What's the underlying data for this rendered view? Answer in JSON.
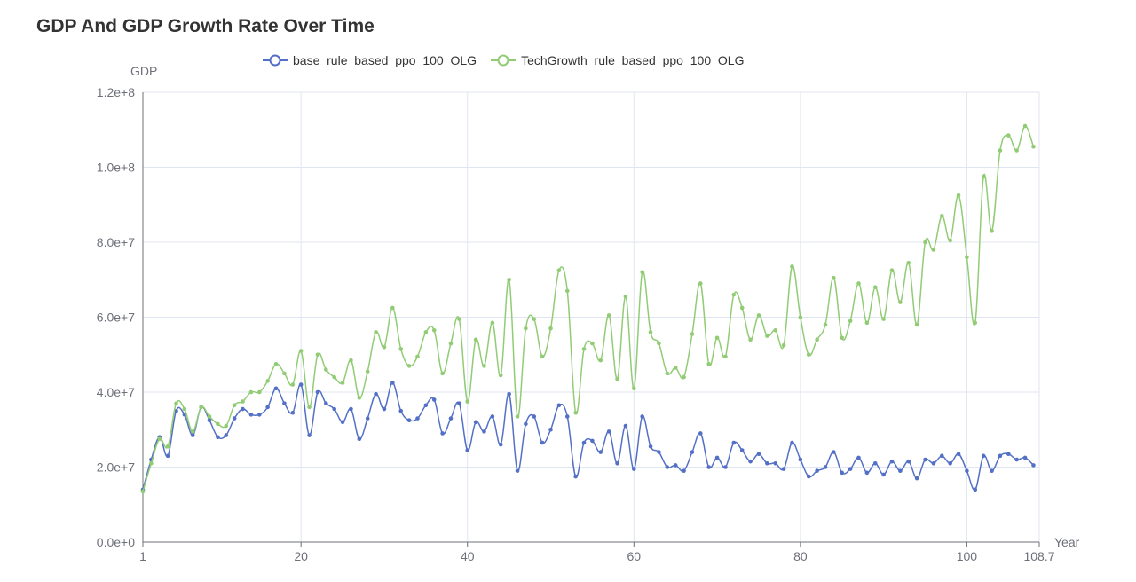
{
  "chart_data": {
    "type": "line",
    "title": "GDP And GDP Growth Rate Over Time",
    "xlabel": "Year",
    "ylabel": "GDP",
    "xlim": [
      1,
      108.7
    ],
    "ylim": [
      0,
      120000000
    ],
    "x_ticks": [
      "1",
      "20",
      "40",
      "60",
      "80",
      "100",
      "108.7"
    ],
    "y_ticks": [
      "0.0e+0",
      "2.0e+7",
      "4.0e+7",
      "6.0e+7",
      "8.0e+7",
      "1.0e+8",
      "1.2e+8"
    ],
    "grid": true,
    "legend_position": "top",
    "series": [
      {
        "name": "base_rule_based_ppo_100_OLG",
        "color": "#5470c6",
        "values": [
          14000000,
          22000000,
          28000000,
          23000000,
          35000000,
          34000000,
          28500000,
          36000000,
          32500000,
          28000000,
          28500000,
          33000000,
          35500000,
          34000000,
          34000000,
          36000000,
          41000000,
          37000000,
          34500000,
          42000000,
          28500000,
          40000000,
          37000000,
          35500000,
          32000000,
          35500000,
          27500000,
          33000000,
          39500000,
          35500000,
          42500000,
          35000000,
          32500000,
          33000000,
          36500000,
          38000000,
          29000000,
          33000000,
          37000000,
          24500000,
          32000000,
          29500000,
          33500000,
          26000000,
          39500000,
          19000000,
          31500000,
          33500000,
          26500000,
          30000000,
          36500000,
          33500000,
          17500000,
          26500000,
          27000000,
          24000000,
          29500000,
          21000000,
          31000000,
          19500000,
          33500000,
          25500000,
          24000000,
          20000000,
          20500000,
          19000000,
          24000000,
          29000000,
          20000000,
          22500000,
          20000000,
          26500000,
          24500000,
          21500000,
          23500000,
          21000000,
          21000000,
          19500000,
          26500000,
          22000000,
          17500000,
          19000000,
          20000000,
          24000000,
          18500000,
          19500000,
          22500000,
          18500000,
          21000000,
          18000000,
          21500000,
          19000000,
          21500000,
          17000000,
          22000000,
          21000000,
          23000000,
          21000000,
          23500000,
          19000000,
          14000000,
          23000000,
          19000000,
          23000000,
          23500000,
          22000000,
          22500000,
          20500000
        ]
      },
      {
        "name": "TechGrowth_rule_based_ppo_100_OLG",
        "color": "#91cc75",
        "values": [
          13500000,
          21000000,
          27500000,
          25500000,
          37000000,
          35500000,
          29500000,
          36000000,
          33500000,
          31500000,
          31000000,
          36500000,
          37500000,
          40000000,
          40000000,
          43000000,
          47500000,
          45000000,
          42000000,
          51000000,
          36000000,
          50000000,
          46000000,
          44000000,
          42500000,
          48500000,
          38500000,
          45500000,
          56000000,
          52000000,
          62500000,
          51500000,
          47000000,
          49500000,
          56000000,
          56500000,
          45000000,
          53000000,
          59500000,
          37500000,
          54000000,
          47000000,
          58500000,
          44500000,
          70000000,
          33500000,
          57000000,
          59500000,
          49500000,
          57000000,
          72500000,
          67000000,
          34500000,
          51500000,
          53000000,
          48500000,
          60500000,
          43500000,
          65500000,
          41000000,
          72000000,
          56000000,
          53000000,
          45000000,
          46500000,
          44000000,
          55500000,
          69000000,
          47500000,
          54500000,
          49500000,
          66000000,
          62500000,
          54000000,
          60500000,
          55000000,
          56500000,
          52500000,
          73500000,
          60000000,
          50000000,
          54000000,
          58000000,
          70500000,
          54500000,
          59000000,
          69000000,
          58500000,
          68000000,
          59500000,
          72500000,
          64000000,
          74500000,
          58000000,
          80000000,
          78000000,
          87000000,
          80500000,
          92500000,
          76000000,
          58500000,
          97500000,
          83000000,
          104500000,
          108500000,
          104500000,
          111000000,
          105500000
        ]
      }
    ]
  }
}
